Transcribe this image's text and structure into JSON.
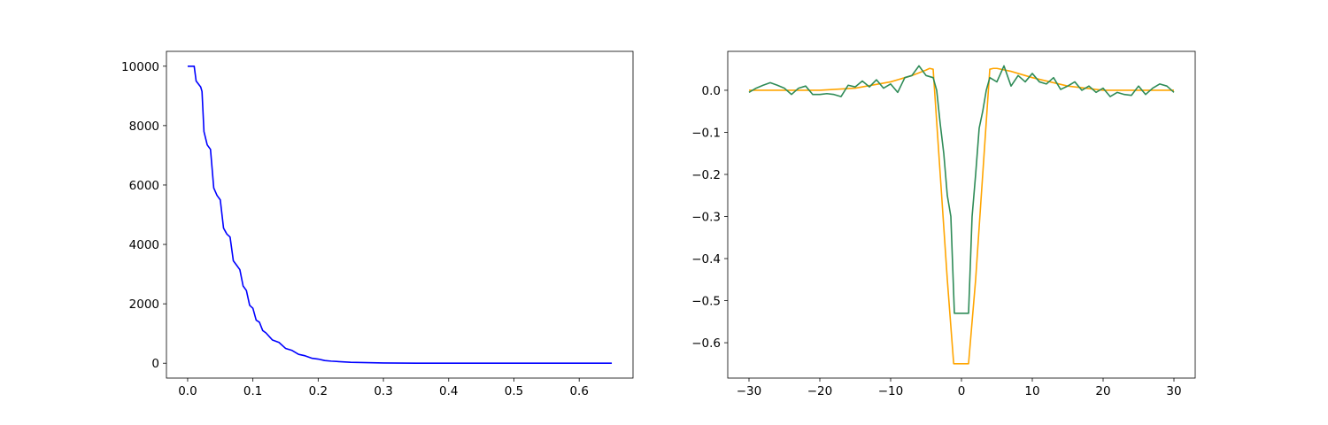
{
  "chart_data": [
    {
      "type": "line",
      "x": [
        0,
        0.01,
        0.013,
        0.02,
        0.022,
        0.025,
        0.03,
        0.035,
        0.04,
        0.045,
        0.05,
        0.055,
        0.06,
        0.065,
        0.07,
        0.075,
        0.08,
        0.085,
        0.09,
        0.095,
        0.1,
        0.105,
        0.11,
        0.115,
        0.12,
        0.13,
        0.14,
        0.15,
        0.16,
        0.17,
        0.18,
        0.19,
        0.2,
        0.21,
        0.22,
        0.25,
        0.3,
        0.35,
        0.4,
        0.5,
        0.65
      ],
      "values": [
        10000,
        10000,
        9500,
        9300,
        9150,
        7800,
        7350,
        7200,
        5900,
        5650,
        5500,
        4550,
        4350,
        4250,
        3450,
        3300,
        3150,
        2600,
        2450,
        1950,
        1850,
        1450,
        1380,
        1100,
        1020,
        780,
        700,
        500,
        430,
        300,
        250,
        170,
        140,
        90,
        70,
        30,
        8,
        2,
        0,
        0,
        0
      ],
      "color": "#0000ff",
      "xlim": [
        -0.0325,
        0.6825
      ],
      "xticks": [
        {
          "value": 0,
          "label": "0.0"
        },
        0.1,
        0.2,
        0.3,
        0.4,
        0.5,
        0.6
      ],
      "ylim": [
        -500,
        10500
      ],
      "yticks": [
        0,
        2000,
        4000,
        6000,
        8000,
        10000
      ]
    },
    {
      "type": "line",
      "series": [
        {
          "color": "#ffa500",
          "x": [
            -30,
            -25,
            -20,
            -15,
            -10,
            -7,
            -5,
            -4.5,
            -4,
            -3,
            -2,
            -1.1,
            1,
            2,
            3,
            4,
            4.5,
            5,
            7,
            10,
            15,
            20,
            25,
            30
          ],
          "values": [
            0,
            0,
            0,
            0.005,
            0.02,
            0.035,
            0.048,
            0.052,
            0.05,
            -0.2,
            -0.45,
            -0.65,
            -0.65,
            -0.45,
            -0.2,
            0.05,
            0.052,
            0.052,
            0.045,
            0.03,
            0.01,
            0,
            0,
            0
          ]
        },
        {
          "color": "#2e8b57",
          "x": [
            -30,
            -29,
            -28,
            -27,
            -26,
            -25,
            -24,
            -23,
            -22,
            -21,
            -20,
            -19,
            -18,
            -17,
            -16,
            -15,
            -14,
            -13,
            -12,
            -11,
            -10,
            -9,
            -8,
            -7,
            -6,
            -5,
            -4,
            -3.5,
            -3,
            -2.5,
            -2,
            -1.5,
            -1,
            0,
            1,
            1.5,
            2,
            2.5,
            3,
            3.5,
            4,
            5,
            6,
            7,
            8,
            9,
            10,
            11,
            12,
            13,
            14,
            15,
            16,
            17,
            18,
            19,
            20,
            21,
            22,
            23,
            24,
            25,
            26,
            27,
            28,
            29,
            30
          ],
          "values": [
            -0.005,
            0.005,
            0.012,
            0.018,
            0.012,
            0.005,
            -0.01,
            0.005,
            0.01,
            -0.01,
            -0.01,
            -0.008,
            -0.01,
            -0.015,
            0.012,
            0.008,
            0.022,
            0.008,
            0.025,
            0.005,
            0.015,
            -0.005,
            0.03,
            0.035,
            0.058,
            0.035,
            0.03,
            0,
            -0.08,
            -0.15,
            -0.25,
            -0.3,
            -0.53,
            -0.53,
            -0.53,
            -0.3,
            -0.2,
            -0.09,
            -0.05,
            0,
            0.03,
            0.02,
            0.058,
            0.01,
            0.035,
            0.02,
            0.04,
            0.02,
            0.015,
            0.03,
            0.002,
            0.01,
            0.02,
            0,
            0.01,
            -0.005,
            0.005,
            -0.015,
            -0.005,
            -0.01,
            -0.012,
            0.01,
            -0.01,
            0.005,
            0.015,
            0.01,
            -0.005
          ]
        }
      ],
      "xlim": [
        -33,
        33
      ],
      "xticks": [
        {
          "value": -30,
          "label": "−30"
        },
        {
          "value": -20,
          "label": "−20"
        },
        {
          "value": -10,
          "label": "−10"
        },
        0,
        10,
        20,
        30
      ],
      "ylim": [
        -0.684,
        0.0925
      ],
      "yticks": [
        {
          "value": -0.6,
          "label": "−0.6"
        },
        {
          "value": -0.5,
          "label": "−0.5"
        },
        {
          "value": -0.4,
          "label": "−0.4"
        },
        {
          "value": -0.3,
          "label": "−0.3"
        },
        {
          "value": -0.2,
          "label": "−0.2"
        },
        {
          "value": -0.1,
          "label": "−0.1"
        },
        {
          "value": 0,
          "label": "0.0"
        }
      ]
    }
  ]
}
